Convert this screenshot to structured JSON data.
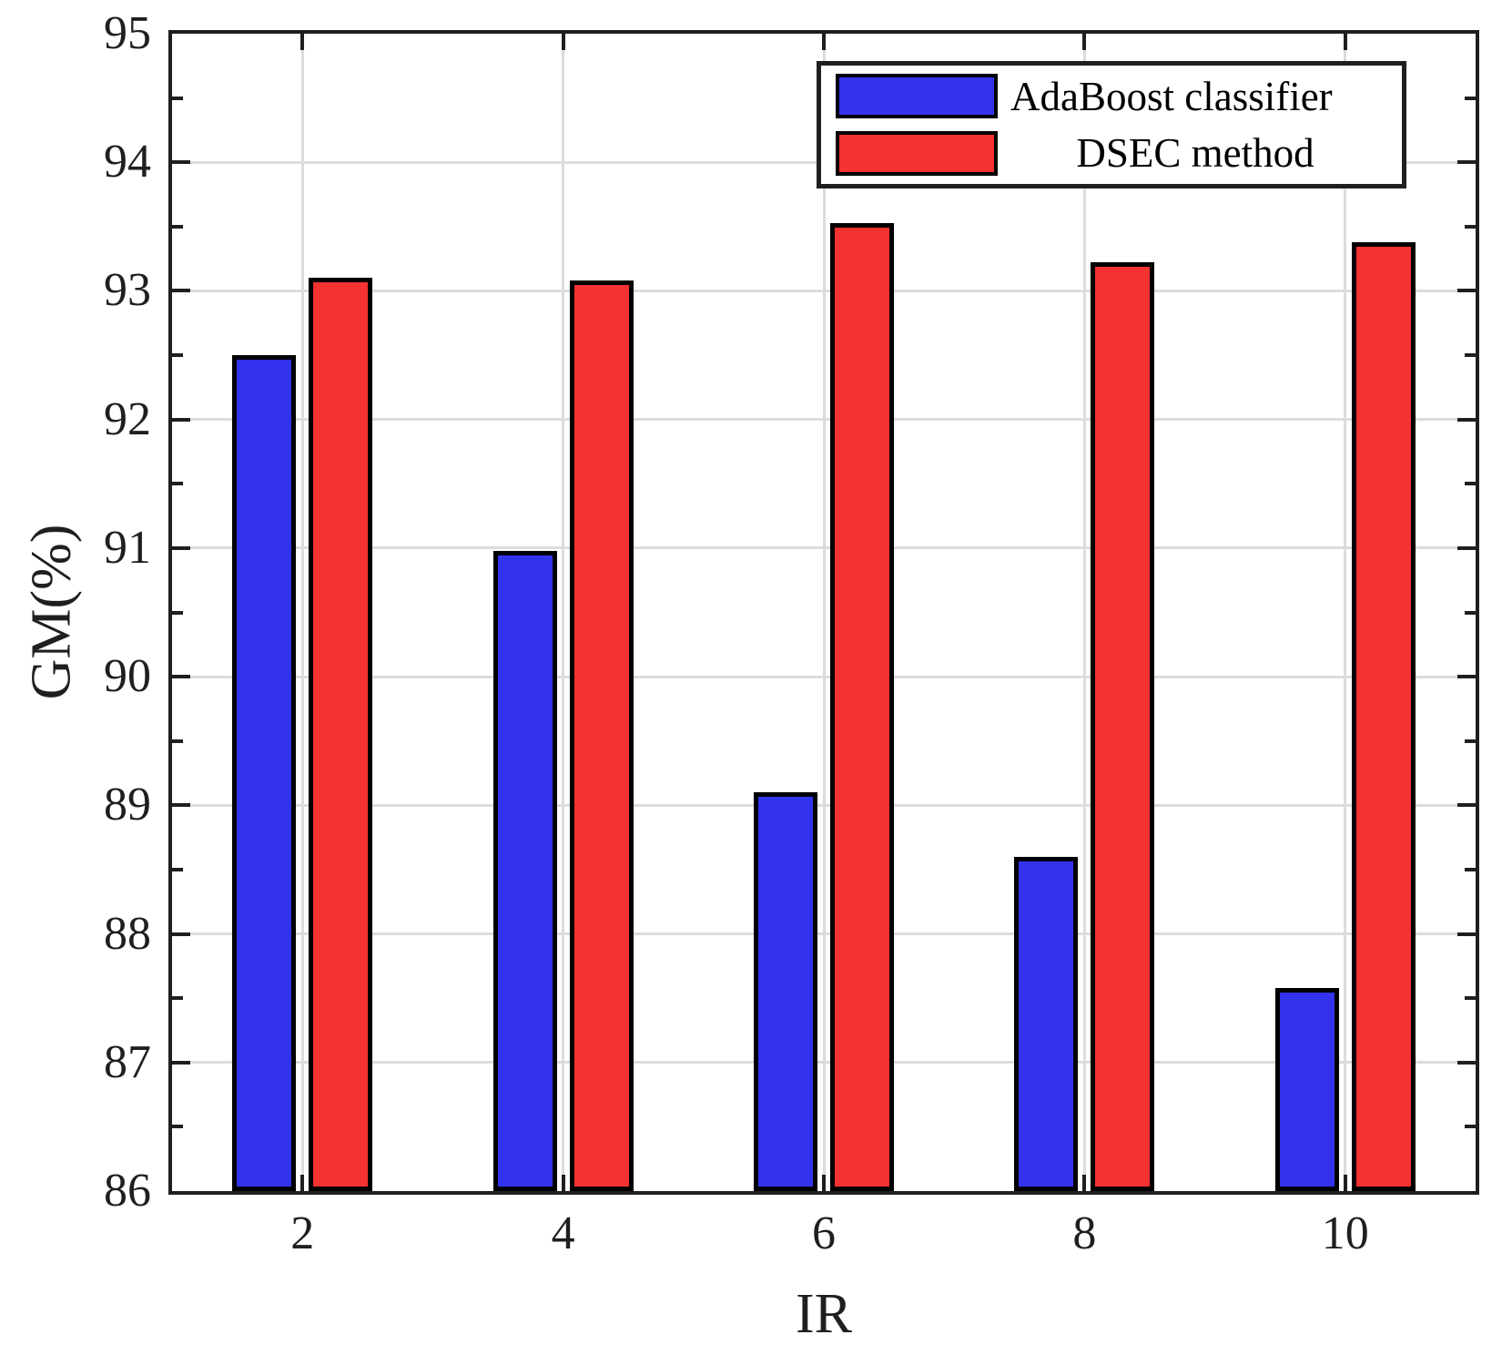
{
  "figure": {
    "background": "#ffffff",
    "axis_color": "#1f1f1f",
    "grid_color": "#dcdcdc",
    "bar_edge_color": "#000000"
  },
  "chart_data": {
    "type": "bar",
    "title": "",
    "xlabel": "IR",
    "ylabel": "GM(%)",
    "categories": [
      "2",
      "4",
      "6",
      "8",
      "10"
    ],
    "series": [
      {
        "name": "AdaBoost classifier",
        "color": "#3333ee",
        "values": [
          92.5,
          90.98,
          89.1,
          88.6,
          87.58
        ]
      },
      {
        "name": "DSEC method",
        "color": "#f53232",
        "values": [
          93.1,
          93.08,
          93.53,
          93.22,
          93.38
        ]
      }
    ],
    "ylim": [
      86,
      95
    ],
    "yticks": [
      86,
      87,
      88,
      89,
      90,
      91,
      92,
      93,
      94,
      95
    ],
    "y_minor_tick_step": 0.5,
    "grid": true,
    "grid_axes": "both",
    "legend_position": "top-right",
    "legend_entries": [
      "AdaBoost classifier",
      "DSEC method"
    ]
  }
}
